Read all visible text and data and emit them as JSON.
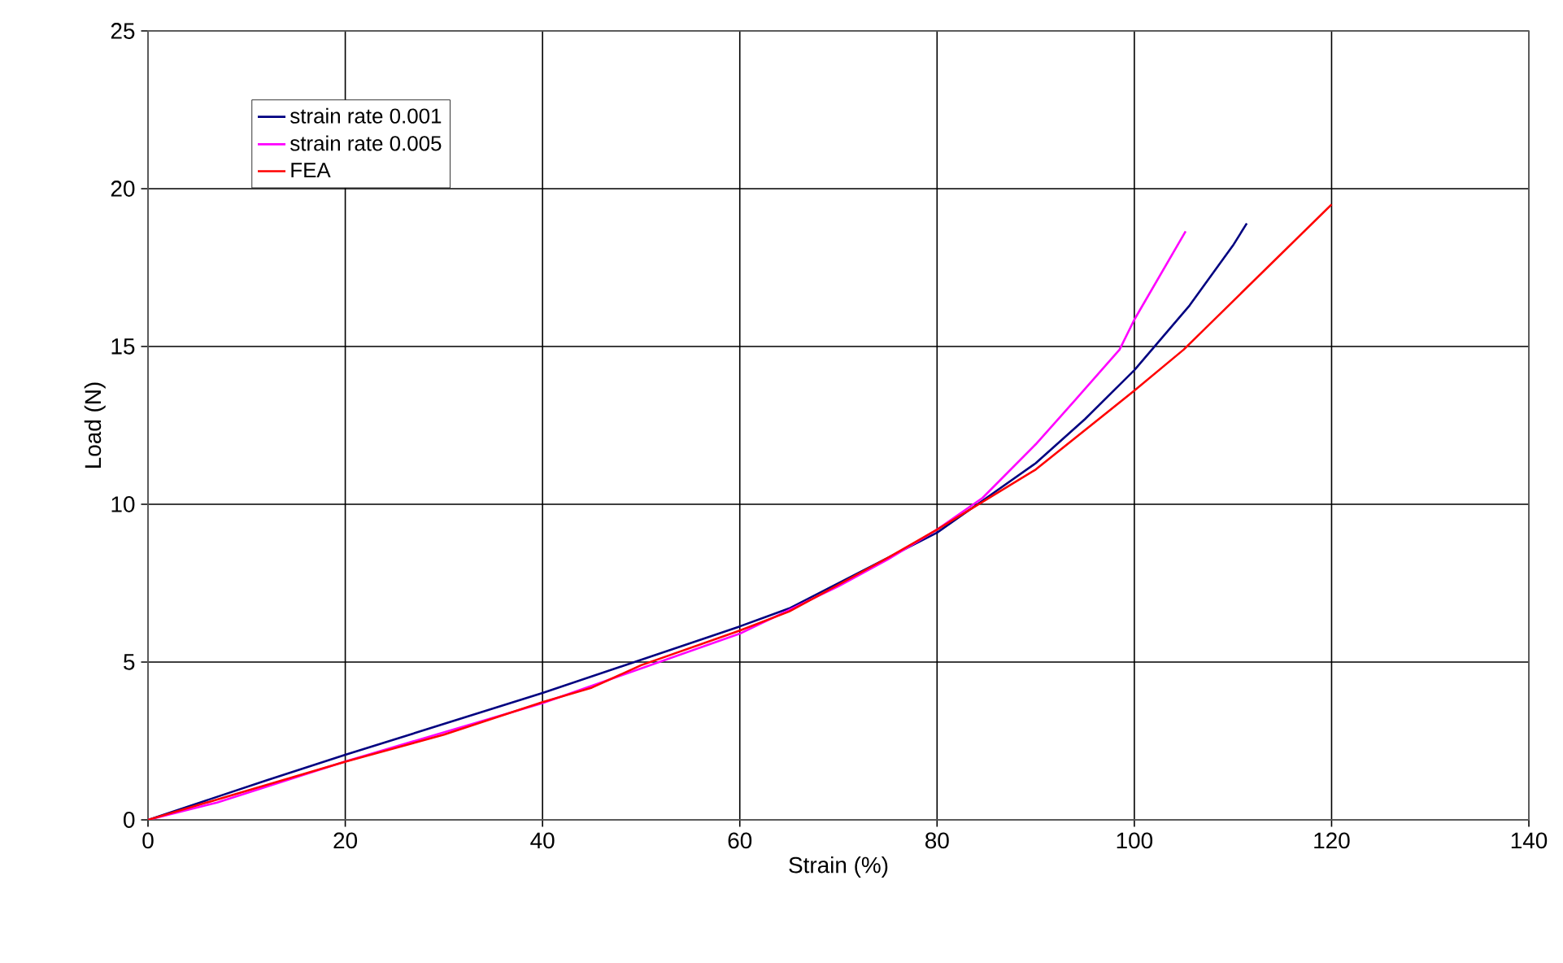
{
  "chart_data": {
    "type": "line",
    "xlabel": "Strain (%)",
    "ylabel": "Load (N)",
    "xlim": [
      0,
      140
    ],
    "ylim": [
      0,
      25
    ],
    "xticks": [
      0,
      20,
      40,
      60,
      80,
      100,
      120,
      140
    ],
    "yticks": [
      0,
      5,
      10,
      15,
      20,
      25
    ],
    "grid": true,
    "legend": "top left",
    "line_style": "solid",
    "marker": "none",
    "series": [
      {
        "name": "strain rate 0.001",
        "color": "#000080",
        "x": [
          0,
          12,
          20,
          40,
          60,
          65,
          75,
          80,
          85,
          90,
          95,
          100,
          105.6,
          110,
          111.4
        ],
        "values": [
          0,
          1.25,
          2.06,
          4.02,
          6.13,
          6.7,
          8.3,
          9.1,
          10.2,
          11.3,
          12.7,
          14.25,
          16.3,
          18.2,
          18.9
        ]
      },
      {
        "name": "strain rate 0.005",
        "color": "#ff00ff",
        "x": [
          0,
          7,
          20,
          40,
          60,
          70,
          75,
          80,
          84.6,
          90,
          94,
          98.5,
          100,
          105.2
        ],
        "values": [
          0,
          0.55,
          1.85,
          3.7,
          5.9,
          7.4,
          8.25,
          9.2,
          10.2,
          11.9,
          13.3,
          14.9,
          15.85,
          18.65
        ]
      },
      {
        "name": "FEA",
        "color": "#ff0000",
        "x": [
          0,
          20,
          30,
          40,
          45,
          50,
          60,
          65,
          75,
          80,
          90,
          100,
          105,
          120
        ],
        "values": [
          0,
          1.84,
          2.7,
          3.73,
          4.19,
          4.9,
          6.0,
          6.6,
          8.3,
          9.2,
          11.1,
          13.6,
          14.9,
          19.5
        ]
      }
    ]
  }
}
